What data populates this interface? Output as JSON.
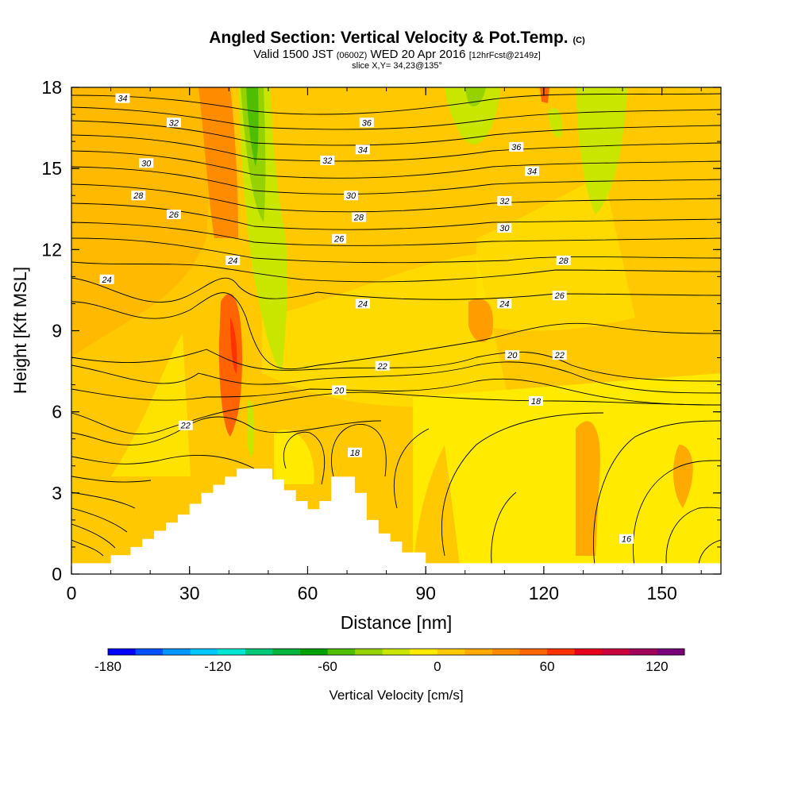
{
  "header": {
    "title_main": "Angled Section: Vertical Velocity & Pot.Temp.",
    "title_unit": "(C)",
    "valid_prefix": "Valid 1500 JST",
    "valid_utc": "(0600Z)",
    "valid_date": "WED 20 Apr 2016",
    "valid_fcst": "[12hrFcst@2149z]",
    "slice": "slice X,Y= 34,23@135°"
  },
  "chart_data": {
    "type": "heatmap",
    "xlabel": "Distance [nm]",
    "ylabel": "Height [Kft MSL]",
    "xlim": [
      0,
      165
    ],
    "ylim": [
      0,
      18
    ],
    "x_ticks": [
      "0",
      "30",
      "60",
      "90",
      "120",
      "150"
    ],
    "y_ticks": [
      "0",
      "3",
      "6",
      "9",
      "12",
      "15",
      "18"
    ],
    "shading_variable": "Vertical Velocity [cm/s]",
    "colorbar": {
      "label": "Vertical Velocity [cm/s]",
      "tick_labels": [
        "-180",
        "-120",
        "-60",
        "0",
        "60",
        "120"
      ],
      "tick_values": [
        -180,
        -120,
        -60,
        0,
        60,
        120
      ],
      "range": [
        -180,
        135
      ],
      "step": 15,
      "colors": [
        "#0000ff",
        "#0050ff",
        "#0096ff",
        "#00c8ff",
        "#00e6d2",
        "#00c878",
        "#00b43c",
        "#00a000",
        "#50be00",
        "#96d200",
        "#c8e600",
        "#ffea00",
        "#ffc800",
        "#ffaa00",
        "#ff8c00",
        "#ff6400",
        "#ff3200",
        "#e6001e",
        "#c8003c",
        "#a0005a",
        "#780078"
      ]
    },
    "terrain_profile": [
      [
        0,
        0.4
      ],
      [
        10,
        0.4
      ],
      [
        10,
        0.7
      ],
      [
        15,
        0.7
      ],
      [
        15,
        1.0
      ],
      [
        18,
        1.0
      ],
      [
        18,
        1.3
      ],
      [
        21,
        1.3
      ],
      [
        21,
        1.6
      ],
      [
        24,
        1.6
      ],
      [
        24,
        1.9
      ],
      [
        27,
        1.9
      ],
      [
        27,
        2.2
      ],
      [
        30,
        2.2
      ],
      [
        30,
        2.6
      ],
      [
        33,
        2.6
      ],
      [
        33,
        3.0
      ],
      [
        36,
        3.0
      ],
      [
        36,
        3.3
      ],
      [
        39,
        3.3
      ],
      [
        39,
        3.6
      ],
      [
        42,
        3.6
      ],
      [
        42,
        3.9
      ],
      [
        51,
        3.9
      ],
      [
        51,
        3.5
      ],
      [
        54,
        3.5
      ],
      [
        54,
        3.1
      ],
      [
        57,
        3.1
      ],
      [
        57,
        2.7
      ],
      [
        60,
        2.7
      ],
      [
        60,
        2.4
      ],
      [
        63,
        2.4
      ],
      [
        63,
        2.7
      ],
      [
        66,
        2.7
      ],
      [
        66,
        3.6
      ],
      [
        72,
        3.6
      ],
      [
        72,
        3.0
      ],
      [
        75,
        3.0
      ],
      [
        75,
        2.0
      ],
      [
        78,
        2.0
      ],
      [
        78,
        1.5
      ],
      [
        81,
        1.5
      ],
      [
        81,
        1.2
      ],
      [
        84,
        1.2
      ],
      [
        84,
        0.8
      ],
      [
        90,
        0.8
      ],
      [
        90,
        0.4
      ],
      [
        165,
        0.4
      ]
    ],
    "isotherms_C": [
      "16",
      "18",
      "20",
      "22",
      "24",
      "26",
      "28",
      "30",
      "32",
      "34",
      "36"
    ],
    "contour_labels": [
      {
        "text": "34",
        "x": 13,
        "y": 17.6
      },
      {
        "text": "32",
        "x": 26,
        "y": 16.7
      },
      {
        "text": "30",
        "x": 19,
        "y": 15.2
      },
      {
        "text": "28",
        "x": 17,
        "y": 14.0
      },
      {
        "text": "26",
        "x": 26,
        "y": 13.3
      },
      {
        "text": "24",
        "x": 9,
        "y": 10.9
      },
      {
        "text": "22",
        "x": 29,
        "y": 5.5
      },
      {
        "text": "24",
        "x": 41,
        "y": 11.6
      },
      {
        "text": "36",
        "x": 75,
        "y": 16.7
      },
      {
        "text": "34",
        "x": 74,
        "y": 15.7
      },
      {
        "text": "32",
        "x": 65,
        "y": 15.3
      },
      {
        "text": "30",
        "x": 71,
        "y": 14.0
      },
      {
        "text": "28",
        "x": 73,
        "y": 13.2
      },
      {
        "text": "26",
        "x": 68,
        "y": 12.4
      },
      {
        "text": "24",
        "x": 74,
        "y": 10.0
      },
      {
        "text": "22",
        "x": 79,
        "y": 7.7
      },
      {
        "text": "20",
        "x": 68,
        "y": 6.8
      },
      {
        "text": "18",
        "x": 72,
        "y": 4.5
      },
      {
        "text": "36",
        "x": 113,
        "y": 15.8
      },
      {
        "text": "34",
        "x": 117,
        "y": 14.9
      },
      {
        "text": "32",
        "x": 110,
        "y": 13.8
      },
      {
        "text": "30",
        "x": 110,
        "y": 12.8
      },
      {
        "text": "28",
        "x": 125,
        "y": 11.6
      },
      {
        "text": "26",
        "x": 124,
        "y": 10.3
      },
      {
        "text": "24",
        "x": 110,
        "y": 10.0
      },
      {
        "text": "20",
        "x": 112,
        "y": 8.1
      },
      {
        "text": "22",
        "x": 124,
        "y": 8.1
      },
      {
        "text": "18",
        "x": 118,
        "y": 6.4
      },
      {
        "text": "16",
        "x": 141,
        "y": 1.3
      }
    ]
  }
}
